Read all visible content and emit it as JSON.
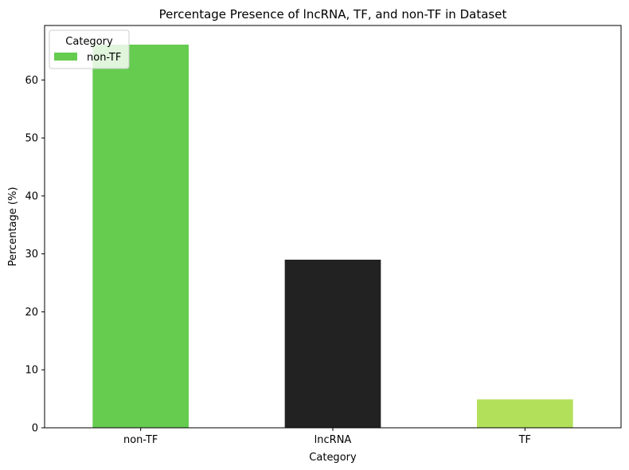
{
  "chart_data": {
    "type": "bar",
    "title": "Percentage Presence of lncRNA, TF, and non-TF in Dataset",
    "xlabel": "Category",
    "ylabel": "Percentage (%)",
    "categories": [
      "non-TF",
      "lncRNA",
      "TF"
    ],
    "values": [
      66.1,
      29.0,
      4.9
    ],
    "colors": [
      "#66cc50",
      "#222222",
      "#b3e05a"
    ],
    "ylim": [
      0,
      69.4
    ],
    "yticks": [
      0,
      10,
      20,
      30,
      40,
      50,
      60
    ],
    "grid": false,
    "legend": {
      "title": "Category",
      "placement": "top-left",
      "entries": [
        {
          "label": "non-TF",
          "color": "#66cc50"
        }
      ]
    }
  }
}
